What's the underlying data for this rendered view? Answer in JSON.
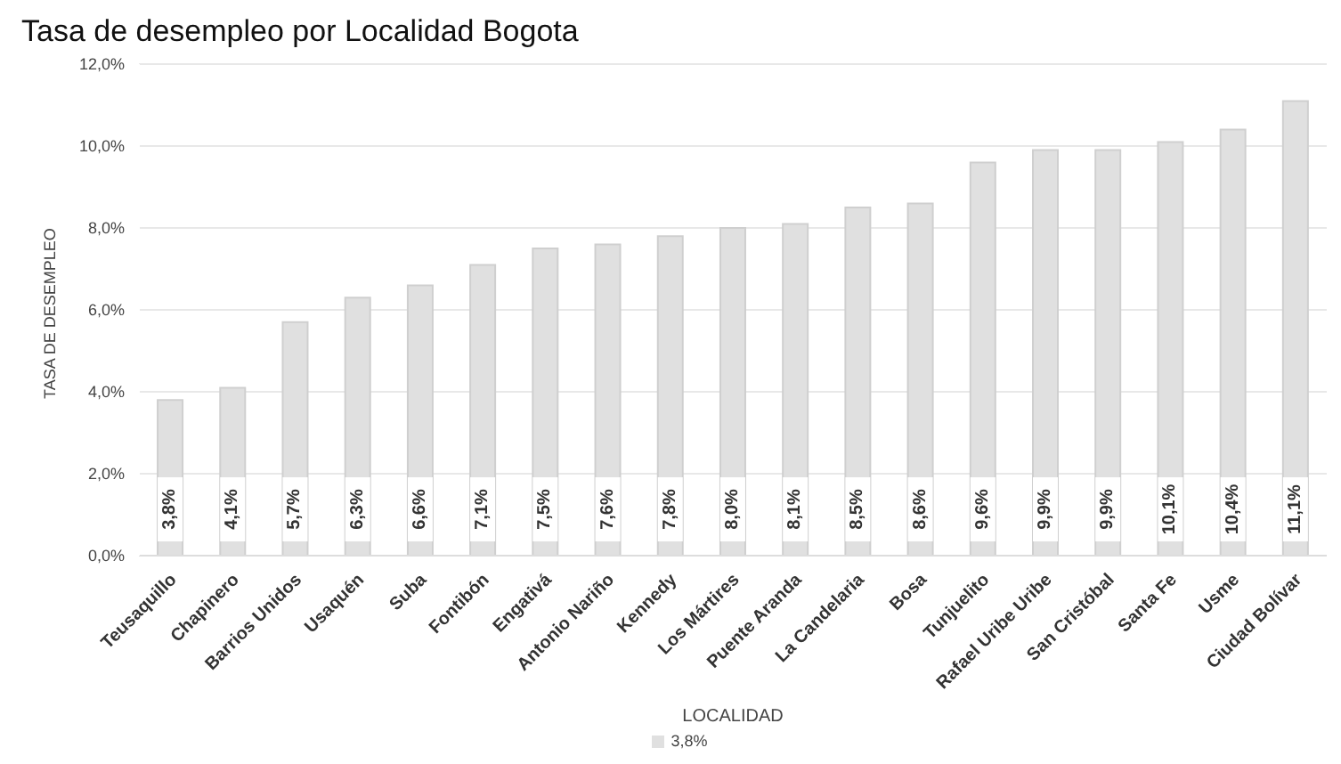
{
  "chart_data": {
    "type": "bar",
    "title": "Tasa de desempleo por Localidad Bogota",
    "xlabel": "LOCALIDAD",
    "ylabel": "TASA DE DESEMPLEO",
    "categories": [
      "Teusaquillo",
      "Chapinero",
      "Barrios Unidos",
      "Usaquén",
      "Suba",
      "Fontibón",
      "Engativá",
      "Antonio Nariño",
      "Kennedy",
      "Los Mártires",
      "Puente Aranda",
      "La Candelaria",
      "Bosa",
      "Tunjuelito",
      "Rafael Uribe Uribe",
      "San Cristóbal",
      "Santa Fe",
      "Usme",
      "Ciudad Bolívar"
    ],
    "series": [
      {
        "name": "3,8%",
        "color": "#e0e0e0",
        "values": [
          3.8,
          4.1,
          5.7,
          6.3,
          6.6,
          7.1,
          7.5,
          7.6,
          7.8,
          8.0,
          8.1,
          8.5,
          8.6,
          9.6,
          9.9,
          9.9,
          10.1,
          10.4,
          11.1
        ],
        "value_labels": [
          "3,8%",
          "4,1%",
          "5,7%",
          "6,3%",
          "6,6%",
          "7,1%",
          "7,5%",
          "7,6%",
          "7,8%",
          "8,0%",
          "8,1%",
          "8,5%",
          "8,6%",
          "9,6%",
          "9,9%",
          "9,9%",
          "10,1%",
          "10,4%",
          "11,1%"
        ]
      }
    ],
    "ylim": [
      0,
      12
    ],
    "yticks": [
      {
        "value": 0,
        "label": "0,0%"
      },
      {
        "value": 2,
        "label": "2,0%"
      },
      {
        "value": 4,
        "label": "4,0%"
      },
      {
        "value": 6,
        "label": "6,0%"
      },
      {
        "value": 8,
        "label": "8,0%"
      },
      {
        "value": 10,
        "label": "10,0%"
      },
      {
        "value": 12,
        "label": "12,0%"
      }
    ],
    "grid": "y",
    "legend": "bottom"
  }
}
